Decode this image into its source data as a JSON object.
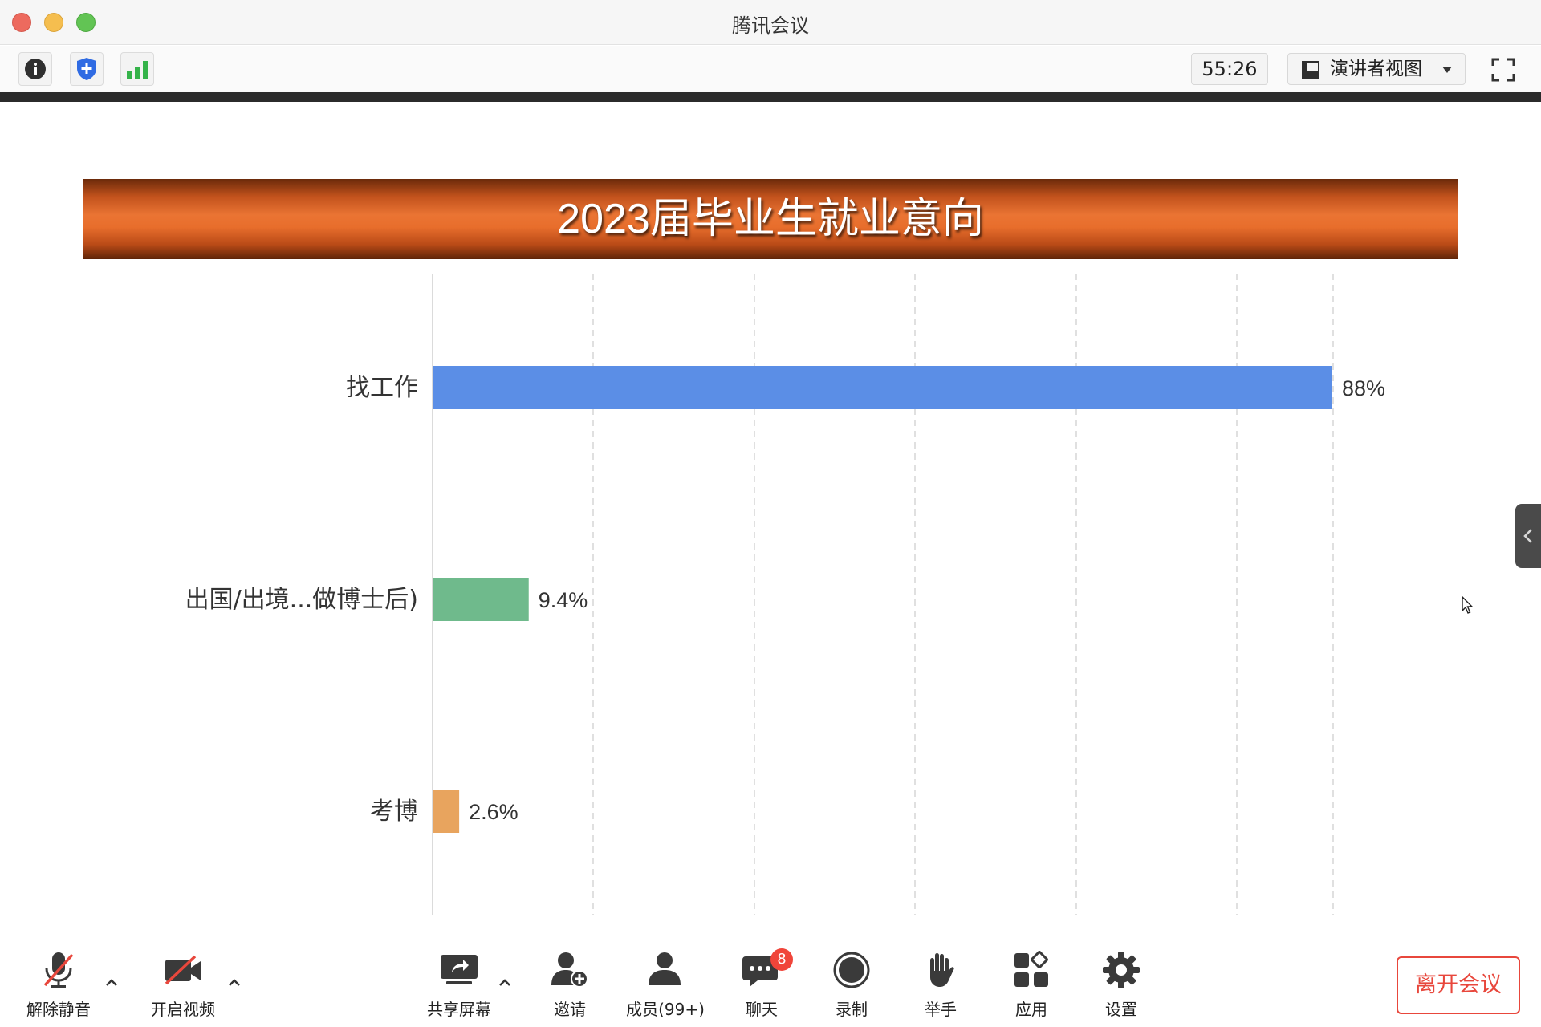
{
  "window": {
    "title": "腾讯会议"
  },
  "toolbar": {
    "info_icon": "info-icon",
    "security_icon": "shield-plus-icon",
    "signal_icon": "signal-bars-icon",
    "timer": "55:26",
    "view_selector": "演讲者视图",
    "fullscreen_icon": "fullscreen-icon"
  },
  "slide": {
    "title": "2023届毕业生就业意向"
  },
  "chart_data": {
    "type": "bar",
    "orientation": "horizontal",
    "title": "2023届毕业生就业意向",
    "categories": [
      "找工作",
      "出国/出境...做博士后)",
      "考博"
    ],
    "values": [
      88,
      9.4,
      2.6
    ],
    "value_labels": [
      "88%",
      "9.4%",
      "2.6%"
    ],
    "colors": [
      "#5b8ee6",
      "#6fba8c",
      "#e8a45e"
    ],
    "xlim": [
      0,
      88
    ],
    "grid": "vertical dashed",
    "legend": "none"
  },
  "bottom_bar": {
    "items": [
      {
        "label": "解除静音",
        "icon": "muted-mic-icon"
      },
      {
        "label": "开启视频",
        "icon": "video-off-icon"
      },
      {
        "label": "共享屏幕",
        "icon": "share-screen-icon"
      },
      {
        "label": "邀请",
        "icon": "invite-user-icon"
      },
      {
        "label": "成员(99+)",
        "icon": "members-icon"
      },
      {
        "label": "聊天",
        "icon": "chat-icon"
      },
      {
        "label": "录制",
        "icon": "record-icon"
      },
      {
        "label": "举手",
        "icon": "raise-hand-icon"
      },
      {
        "label": "应用",
        "icon": "apps-icon"
      },
      {
        "label": "设置",
        "icon": "settings-icon"
      }
    ],
    "chat_badge": "8",
    "leave_label": "离开会议"
  }
}
